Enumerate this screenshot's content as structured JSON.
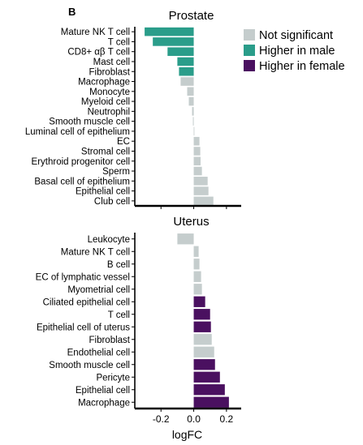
{
  "panel_letter": "B",
  "legend": {
    "items": [
      {
        "label": "Not significant",
        "color": "#c5cdcd"
      },
      {
        "label": "Higher in male",
        "color": "#2a9d8a"
      },
      {
        "label": "Higher in female",
        "color": "#4a1060"
      }
    ]
  },
  "chart_data": [
    {
      "type": "bar",
      "orientation": "horizontal",
      "title": "Prostate",
      "xlabel": "",
      "xlim": [
        -0.36,
        0.29
      ],
      "xticks": [
        -0.2,
        0.0,
        0.2
      ],
      "xtick_labels": [
        "-0.2",
        "0.0",
        "0.2"
      ],
      "categories": [
        "Mature NK T cell",
        "T cell",
        "CD8+ αβ T cell",
        "Mast cell",
        "Fibroblast",
        "Macrophage",
        "Monocyte",
        "Myeloid cell",
        "Neutrophil",
        "Smooth muscle cell",
        "Luminal cell of epithelium",
        "EC",
        "Stromal cell",
        "Erythroid progenitor cell",
        "Sperm",
        "Basal cell of epithelium",
        "Epithelial cell",
        "Club cell"
      ],
      "values": [
        -0.3,
        -0.25,
        -0.16,
        -0.1,
        -0.09,
        -0.08,
        -0.04,
        -0.03,
        -0.01,
        -0.005,
        0.003,
        0.035,
        0.04,
        0.042,
        0.05,
        0.085,
        0.09,
        0.12
      ],
      "status": [
        "male",
        "male",
        "male",
        "male",
        "male",
        "ns",
        "ns",
        "ns",
        "ns",
        "ns",
        "ns",
        "ns",
        "ns",
        "ns",
        "ns",
        "ns",
        "ns",
        "ns"
      ]
    },
    {
      "type": "bar",
      "orientation": "horizontal",
      "title": "Uterus",
      "xlabel": "logFC",
      "xlim": [
        -0.36,
        0.29
      ],
      "xticks": [
        -0.2,
        0.0,
        0.2
      ],
      "xtick_labels": [
        "-0.2",
        "0.0",
        "0.2"
      ],
      "categories": [
        "Leukocyte",
        "Mature NK T cell",
        "B cell",
        "EC of lymphatic vessel",
        "Myometrial cell",
        "Ciliated epithelial cell",
        "T cell",
        "Epithelial cell of uterus",
        "Fibroblast",
        "Endothelial cell",
        "Smooth muscle cell",
        "Pericyte",
        "Epithelial cell",
        "Macrophage"
      ],
      "values": [
        -0.1,
        0.03,
        0.035,
        0.045,
        0.05,
        0.07,
        0.1,
        0.105,
        0.11,
        0.125,
        0.13,
        0.16,
        0.19,
        0.215
      ],
      "status": [
        "ns",
        "ns",
        "ns",
        "ns",
        "ns",
        "female",
        "female",
        "female",
        "ns",
        "ns",
        "female",
        "female",
        "female",
        "female"
      ]
    }
  ]
}
